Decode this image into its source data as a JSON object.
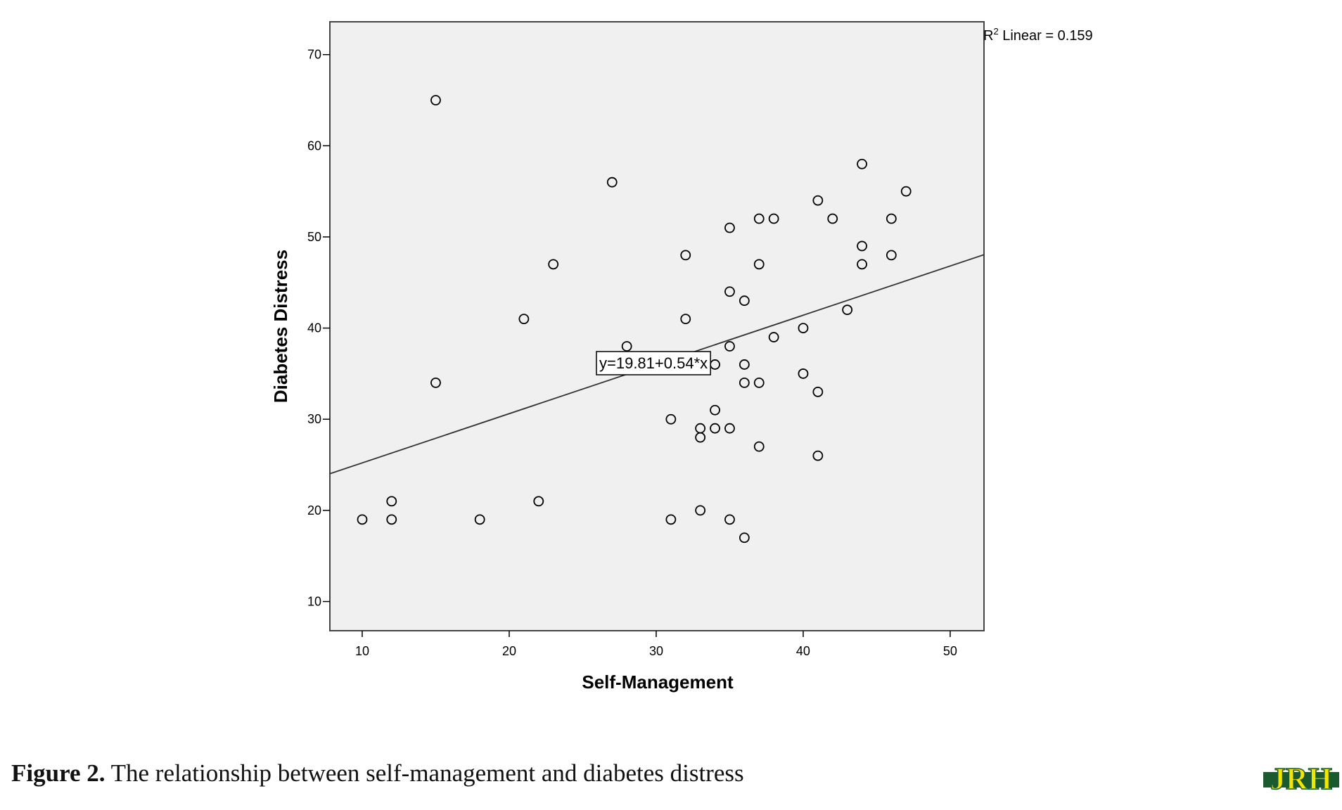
{
  "chart_data": {
    "type": "scatter",
    "title": "",
    "xlabel": "Self-Management",
    "ylabel": "Diabetes Distress",
    "xlim": [
      7.8,
      52.3
    ],
    "ylim": [
      6.8,
      73.6
    ],
    "xticks": [
      10,
      20,
      30,
      40,
      50
    ],
    "yticks": [
      10,
      20,
      30,
      40,
      50,
      60,
      70
    ],
    "grid": false,
    "background": "#f0f0f0",
    "points": [
      {
        "x": 15,
        "y": 65
      },
      {
        "x": 27,
        "y": 56
      },
      {
        "x": 44,
        "y": 58
      },
      {
        "x": 47,
        "y": 55
      },
      {
        "x": 41,
        "y": 54
      },
      {
        "x": 37,
        "y": 52
      },
      {
        "x": 38,
        "y": 52
      },
      {
        "x": 42,
        "y": 52
      },
      {
        "x": 46,
        "y": 52
      },
      {
        "x": 35,
        "y": 51
      },
      {
        "x": 44,
        "y": 49
      },
      {
        "x": 32,
        "y": 48
      },
      {
        "x": 46,
        "y": 48
      },
      {
        "x": 23,
        "y": 47
      },
      {
        "x": 37,
        "y": 47
      },
      {
        "x": 44,
        "y": 47
      },
      {
        "x": 35,
        "y": 44
      },
      {
        "x": 36,
        "y": 43
      },
      {
        "x": 43,
        "y": 42
      },
      {
        "x": 21,
        "y": 41
      },
      {
        "x": 32,
        "y": 41
      },
      {
        "x": 40,
        "y": 40
      },
      {
        "x": 38,
        "y": 39
      },
      {
        "x": 28,
        "y": 38
      },
      {
        "x": 35,
        "y": 38
      },
      {
        "x": 34,
        "y": 36
      },
      {
        "x": 36,
        "y": 36
      },
      {
        "x": 40,
        "y": 35
      },
      {
        "x": 15,
        "y": 34
      },
      {
        "x": 36,
        "y": 34
      },
      {
        "x": 37,
        "y": 34
      },
      {
        "x": 41,
        "y": 33
      },
      {
        "x": 34,
        "y": 31
      },
      {
        "x": 31,
        "y": 30
      },
      {
        "x": 33,
        "y": 29
      },
      {
        "x": 34,
        "y": 29
      },
      {
        "x": 35,
        "y": 29
      },
      {
        "x": 33,
        "y": 28
      },
      {
        "x": 37,
        "y": 27
      },
      {
        "x": 41,
        "y": 26
      },
      {
        "x": 12,
        "y": 21
      },
      {
        "x": 22,
        "y": 21
      },
      {
        "x": 33,
        "y": 20
      },
      {
        "x": 10,
        "y": 19
      },
      {
        "x": 12,
        "y": 19
      },
      {
        "x": 18,
        "y": 19
      },
      {
        "x": 31,
        "y": 19
      },
      {
        "x": 35,
        "y": 19
      },
      {
        "x": 36,
        "y": 17
      }
    ],
    "fit_line": {
      "intercept": 19.81,
      "slope": 0.54
    },
    "equation_label": "y=19.81+0.54*x",
    "r2_label": "R",
    "r2_superscript": "2",
    "r2_text": " Linear = 0.159"
  },
  "caption": {
    "bold": "Figure 2.",
    "text": " The relationship between self-management and diabetes distress"
  },
  "logo": {
    "text": "JRH",
    "colors": [
      "#f2e600",
      "#1a5a2e"
    ]
  }
}
